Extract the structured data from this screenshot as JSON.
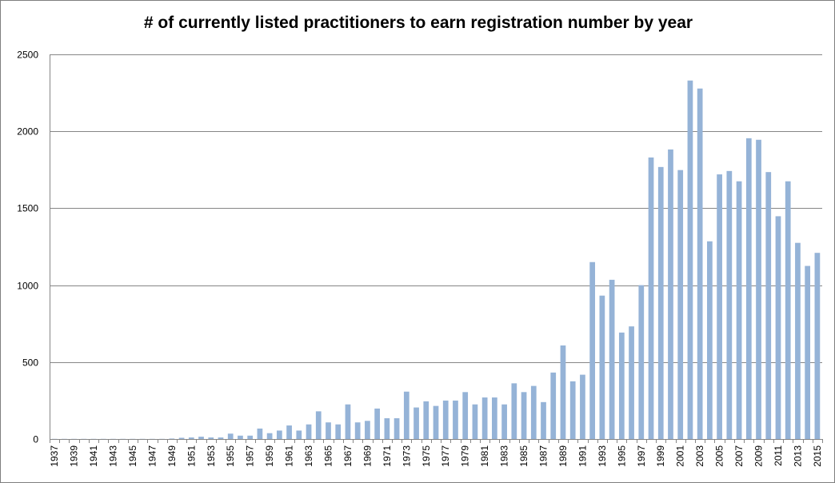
{
  "chart_data": {
    "type": "bar",
    "title": "# of currently listed practitioners  to earn registration  number by year",
    "xlabel": "",
    "ylabel": "",
    "ylim": [
      0,
      2500
    ],
    "yticks": [
      0,
      500,
      1000,
      1500,
      2000,
      2500
    ],
    "grid": true,
    "legend": "none",
    "bar_color": "#95b3d7",
    "grid_color": "#868686",
    "categories": [
      "1937",
      "1938",
      "1939",
      "1940",
      "1941",
      "1942",
      "1943",
      "1944",
      "1945",
      "1946",
      "1947",
      "1948",
      "1949",
      "1950",
      "1951",
      "1952",
      "1953",
      "1954",
      "1955",
      "1956",
      "1957",
      "1958",
      "1959",
      "1960",
      "1961",
      "1962",
      "1963",
      "1964",
      "1965",
      "1966",
      "1967",
      "1968",
      "1969",
      "1970",
      "1971",
      "1972",
      "1973",
      "1974",
      "1975",
      "1976",
      "1977",
      "1978",
      "1979",
      "1980",
      "1981",
      "1982",
      "1983",
      "1984",
      "1985",
      "1986",
      "1987",
      "1988",
      "1989",
      "1990",
      "1991",
      "1992",
      "1993",
      "1994",
      "1995",
      "1996",
      "1997",
      "1998",
      "1999",
      "2000",
      "2001",
      "2002",
      "2003",
      "2004",
      "2005",
      "2006",
      "2007",
      "2008",
      "2009",
      "2010",
      "2011",
      "2012",
      "2013",
      "2014",
      "2015"
    ],
    "x_tick_labels": [
      "1937",
      "1939",
      "1941",
      "1943",
      "1945",
      "1947",
      "1949",
      "1951",
      "1953",
      "1955",
      "1957",
      "1959",
      "1961",
      "1963",
      "1965",
      "1967",
      "1969",
      "1971",
      "1973",
      "1975",
      "1977",
      "1979",
      "1981",
      "1983",
      "1985",
      "1987",
      "1989",
      "1991",
      "1993",
      "1995",
      "1997",
      "1999",
      "2001",
      "2003",
      "2005",
      "2007",
      "2009",
      "2011",
      "2013",
      "2015"
    ],
    "values": [
      1,
      1,
      1,
      1,
      1,
      1,
      1,
      1,
      1,
      1,
      1,
      1,
      3,
      8,
      10,
      15,
      10,
      10,
      35,
      22,
      22,
      68,
      38,
      55,
      88,
      55,
      95,
      180,
      108,
      95,
      225,
      108,
      118,
      198,
      135,
      135,
      308,
      205,
      245,
      215,
      250,
      250,
      305,
      225,
      270,
      270,
      225,
      362,
      305,
      345,
      240,
      432,
      608,
      375,
      418,
      1150,
      932,
      1035,
      692,
      732,
      1000,
      1830,
      1768,
      1882,
      1748,
      2330,
      2278,
      1285,
      1720,
      1742,
      1675,
      1955,
      1945,
      1735,
      1448,
      1675,
      1275,
      1125,
      1210
    ]
  }
}
